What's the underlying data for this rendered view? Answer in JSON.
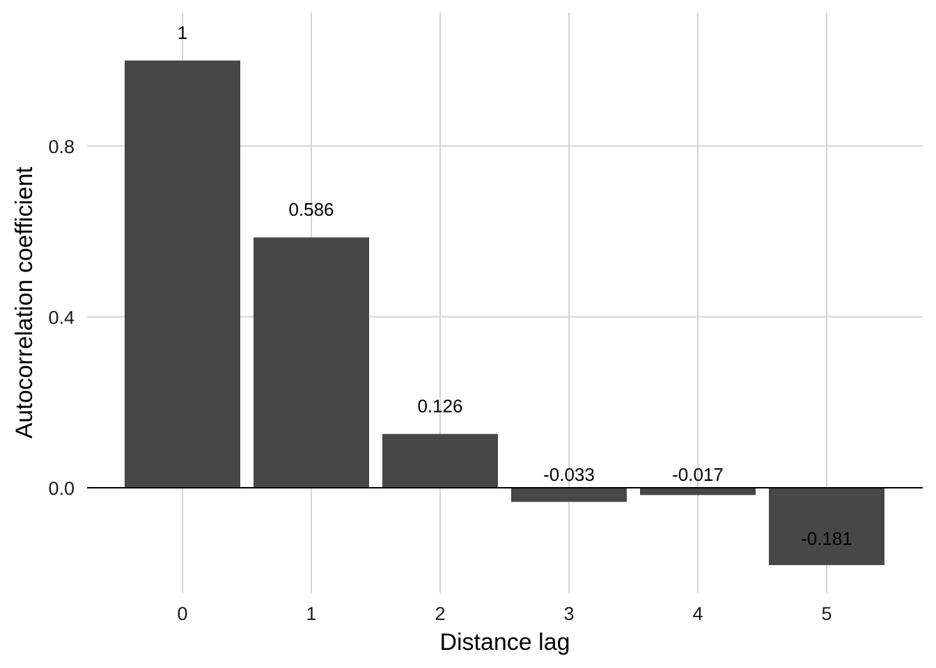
{
  "chart_data": {
    "type": "bar",
    "categories": [
      "0",
      "1",
      "2",
      "3",
      "4",
      "5"
    ],
    "values": [
      1,
      0.586,
      0.126,
      -0.033,
      -0.017,
      -0.181
    ],
    "data_labels": [
      "1",
      "0.586",
      "0.126",
      "-0.033",
      "-0.017",
      "-0.181"
    ],
    "title": "",
    "xlabel": "Distance lag",
    "ylabel": "Autocorrelation coefficient",
    "yticks": [
      0.0,
      0.4,
      0.8
    ],
    "ytick_labels": [
      "0.0",
      "0.4",
      "0.8"
    ],
    "ylim": [
      -0.23,
      1.12
    ],
    "grid": true,
    "bar_color": "#474747",
    "grid_color": "#d3d3d3"
  }
}
